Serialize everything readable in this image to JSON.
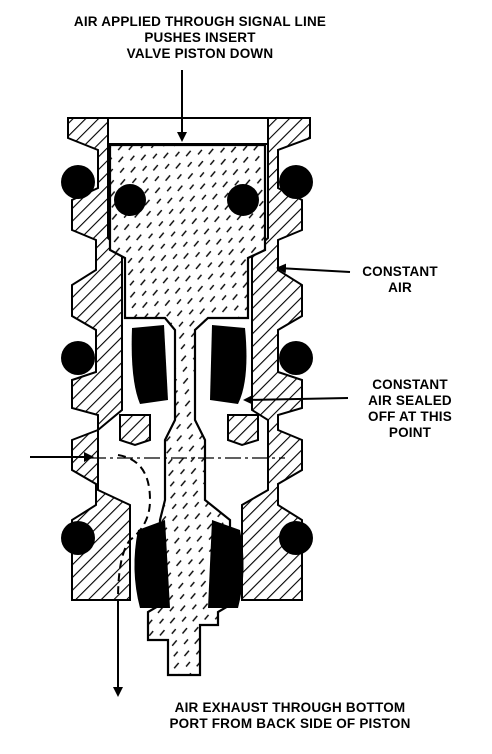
{
  "labels": {
    "top": {
      "line1": "AIR APPLIED THROUGH SIGNAL LINE",
      "line2": "PUSHES INSERT",
      "line3": "VALVE PISTON DOWN"
    },
    "constant_air": {
      "line1": "CONSTANT",
      "line2": "AIR"
    },
    "sealed": {
      "line1": "CONSTANT",
      "line2": "AIR SEALED",
      "line3": "OFF AT THIS",
      "line4": "POINT"
    },
    "exhaust": {
      "line1": "AIR EXHAUST THROUGH BOTTOM",
      "line2": "PORT FROM BACK SIDE OF PISTON"
    }
  }
}
